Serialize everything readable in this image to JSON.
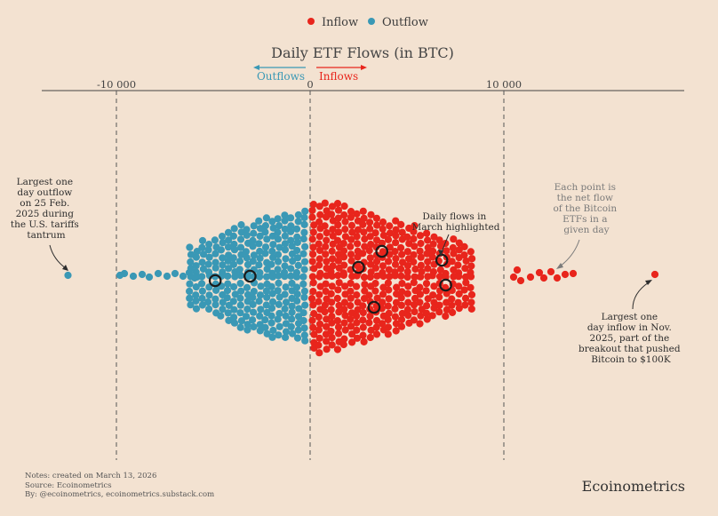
{
  "chart_data": {
    "type": "beeswarm",
    "title": "Daily ETF Flows (in BTC)",
    "xlabel": "",
    "xlim": [
      -14000,
      19500
    ],
    "legend": [
      {
        "label": "Inflow",
        "color": "#e8251c"
      },
      {
        "label": "Outflow",
        "color": "#3a98b5"
      }
    ],
    "colors": {
      "inflow": "#e8251c",
      "outflow": "#3a98b5",
      "axis": "#444444",
      "background": "#f3e2d1"
    },
    "ticks": [
      {
        "value": -10000,
        "label": "-10 000"
      },
      {
        "value": 0,
        "label": "0"
      },
      {
        "value": 10000,
        "label": "10 000"
      }
    ],
    "direction_labels": {
      "outflows": "Outflows",
      "inflows": "Inflows"
    },
    "extremes": {
      "largest_outflow": -12500,
      "largest_inflow": 17800
    },
    "march_highlights": [
      -4900,
      -3100,
      2500,
      3700,
      3300,
      6800,
      7000
    ],
    "approximate_counts": {
      "inflow_days": 360,
      "outflow_days": 240
    },
    "annotations": {
      "outflow_note": [
        "Largest one",
        "day outflow",
        "on 25 Feb.",
        "2025 during",
        "the U.S. tariffs",
        "tantrum"
      ],
      "inflow_note": [
        "Largest one",
        "day inflow in Nov.",
        "2025, part of the",
        "breakout that pushed",
        "Bitcoin to $100K"
      ],
      "point_note": [
        "Each point is",
        "the net flow",
        "of the Bitcoin",
        "ETFs in a",
        "given day"
      ],
      "march_note": [
        "Daily flows in",
        "March highlighted"
      ]
    }
  },
  "footer": {
    "notes": "Notes: created on March 13, 2026",
    "source": "Source: Ecoinometrics",
    "by": "By: @ecoinometrics, ecoinometrics.substack.com",
    "brand": "Ecoinometrics"
  }
}
